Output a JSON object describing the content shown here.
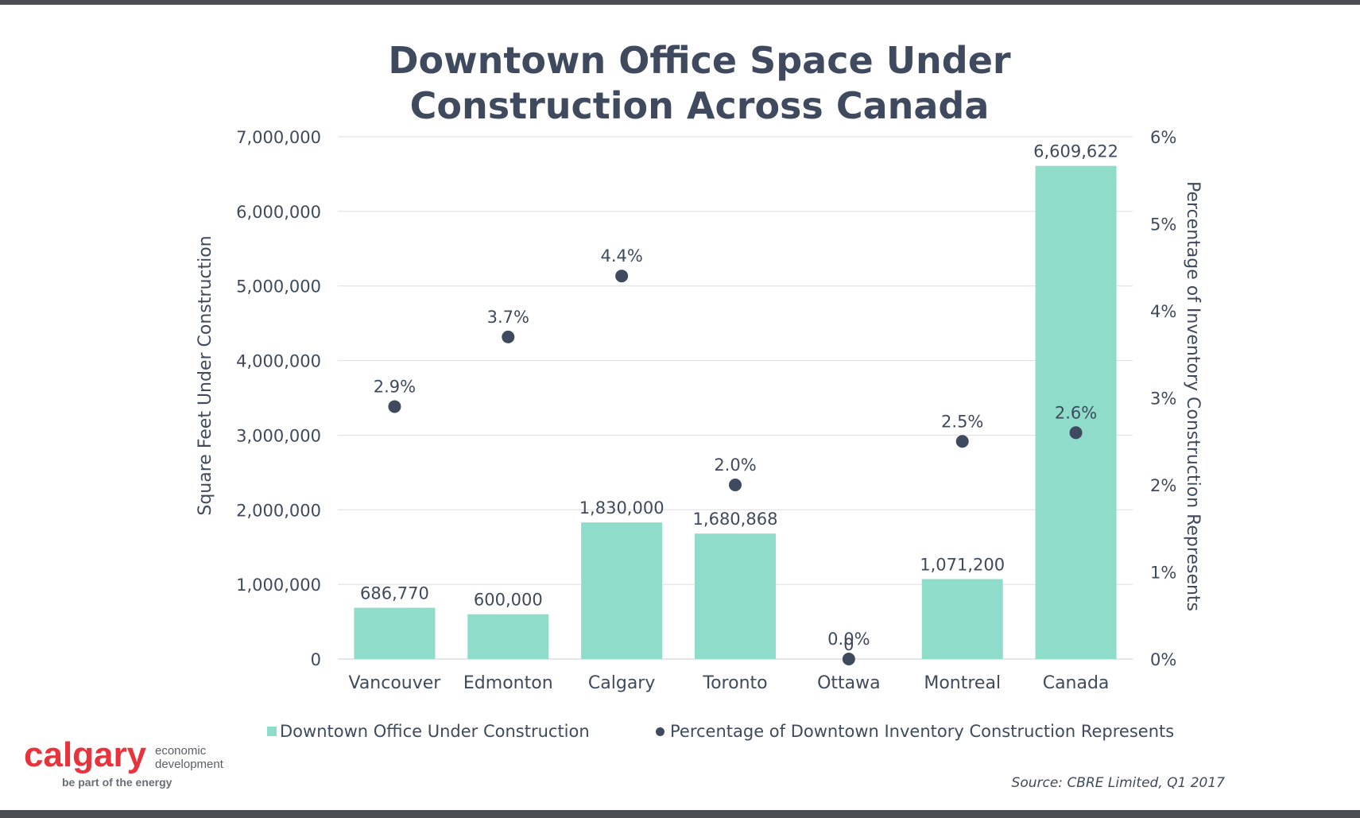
{
  "chart_data": {
    "type": "bar",
    "title_lines": [
      "Downtown Office Space Under",
      "Construction Across Canada"
    ],
    "categories": [
      "Vancouver",
      "Edmonton",
      "Calgary",
      "Toronto",
      "Ottawa",
      "Montreal",
      "Canada"
    ],
    "series": [
      {
        "name": "Downtown Office Under Construction",
        "type": "bar",
        "axis": "left",
        "color": "#8fdccb",
        "values": [
          686770,
          600000,
          1830000,
          1680868,
          0,
          1071200,
          6609622
        ],
        "labels": [
          "686,770",
          "600,000",
          "1,830,000",
          "1,680,868",
          "0",
          "1,071,200",
          "6,609,622"
        ]
      },
      {
        "name": "Percentage of Downtown Inventory Construction Represents",
        "type": "scatter",
        "axis": "right",
        "color": "#3f4a5f",
        "values": [
          2.9,
          3.7,
          4.4,
          2.0,
          0.0,
          2.5,
          2.6
        ],
        "labels": [
          "2.9%",
          "3.7%",
          "4.4%",
          "2.0%",
          "0.0%",
          "2.5%",
          "2.6%"
        ]
      }
    ],
    "ylabel": "Square Feet Under Construction",
    "ylabel_right": "Percentage of Inventory Construction Represents",
    "ylim": [
      0,
      7000000
    ],
    "ylim_right": [
      0,
      6
    ],
    "yticks": [
      0,
      1000000,
      2000000,
      3000000,
      4000000,
      5000000,
      6000000,
      7000000
    ],
    "ytick_labels": [
      "0",
      "1,000,000",
      "2,000,000",
      "3,000,000",
      "4,000,000",
      "5,000,000",
      "6,000,000",
      "7,000,000"
    ],
    "yticks_right": [
      0,
      1,
      2,
      3,
      4,
      5,
      6
    ],
    "ytick_labels_right": [
      "0%",
      "1%",
      "2%",
      "3%",
      "4%",
      "5%",
      "6%"
    ],
    "grid": true,
    "legend_position": "bottom"
  },
  "logo": {
    "word": "calgary",
    "side_line1": "economic",
    "side_line2": "development",
    "tagline": "be part of the energy"
  },
  "source": "Source: CBRE Limited, Q1 2017"
}
